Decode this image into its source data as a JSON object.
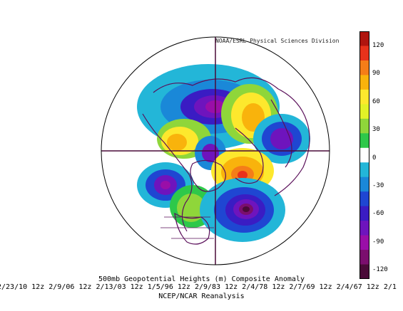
{
  "header": {
    "credit": "NOAA/ESRL Physical Sciences Division"
  },
  "title": {
    "main": "500mb Geopotential Heights (m)   Composite Anomaly",
    "dates": "2/23/10 12z 2/9/06 12z 2/13/03 12z 1/5/96 12z 2/9/83 12z 2/4/78 12z 2/7/69 12z 2/4/67 12z 2/1",
    "source": "NCEP/NCAR Reanalysis"
  },
  "colorbar": {
    "labels": [
      "120",
      "90",
      "60",
      "30",
      "0",
      "-30",
      "-60",
      "-90",
      "-120"
    ],
    "colors": [
      "#b0150f",
      "#e8321b",
      "#f57d18",
      "#f9b30c",
      "#fde82d",
      "#e2f227",
      "#8fd63a",
      "#2ec84a",
      "#ffffff",
      "#23b6d8",
      "#1a88d8",
      "#1f46d2",
      "#3a1cc3",
      "#6e14bd",
      "#9a0ea8",
      "#7b0e6e",
      "#4a0a38"
    ]
  }
}
